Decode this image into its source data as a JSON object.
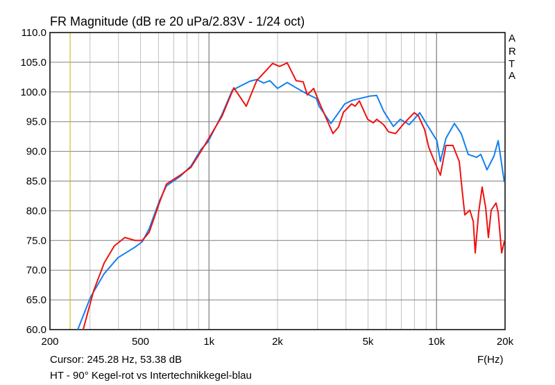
{
  "chart_data": {
    "type": "line",
    "title": "FR Magnitude (dB re 20 uPa/2.83V - 1/24 oct)",
    "xlabel": "F(Hz)",
    "ylabel": "",
    "xscale": "log",
    "xlim": [
      200,
      20000
    ],
    "ylim": [
      60,
      110
    ],
    "grid": true,
    "x_ticks": [
      {
        "v": 200,
        "label": "200"
      },
      {
        "v": 500,
        "label": "500"
      },
      {
        "v": 1000,
        "label": "1k"
      },
      {
        "v": 2000,
        "label": "2k"
      },
      {
        "v": 5000,
        "label": "5k"
      },
      {
        "v": 10000,
        "label": "10k"
      },
      {
        "v": 20000,
        "label": "20k"
      }
    ],
    "y_ticks": [
      "60.0",
      "65.0",
      "70.0",
      "75.0",
      "80.0",
      "85.0",
      "90.0",
      "95.0",
      "100.0",
      "105.0",
      "110.0"
    ],
    "cursor_hz": 245.28,
    "series": [
      {
        "color": "#1080f0",
        "points": [
          [
            265,
            60
          ],
          [
            301,
            65.4
          ],
          [
            346,
            69.4
          ],
          [
            398,
            72.1
          ],
          [
            474,
            73.9
          ],
          [
            509,
            74.8
          ],
          [
            546,
            77
          ],
          [
            606,
            81.7
          ],
          [
            650,
            84.2
          ],
          [
            748,
            85.8
          ],
          [
            832,
            87.5
          ],
          [
            925,
            90.4
          ],
          [
            990,
            91.6
          ],
          [
            1140,
            96.2
          ],
          [
            1266,
            100.3
          ],
          [
            1510,
            101.8
          ],
          [
            1620,
            102.1
          ],
          [
            1738,
            101.5
          ],
          [
            1852,
            101.9
          ],
          [
            2000,
            100.6
          ],
          [
            2206,
            101.6
          ],
          [
            2416,
            100.7
          ],
          [
            2686,
            99.7
          ],
          [
            2964,
            98.9
          ],
          [
            3048,
            97.6
          ],
          [
            3434,
            94.7
          ],
          [
            3952,
            98
          ],
          [
            4268,
            98.6
          ],
          [
            5086,
            99.3
          ],
          [
            5458,
            99.4
          ],
          [
            5850,
            96.8
          ],
          [
            6460,
            94.2
          ],
          [
            6930,
            95.4
          ],
          [
            7590,
            94.5
          ],
          [
            8434,
            96.5
          ],
          [
            9180,
            94.2
          ],
          [
            10040,
            91.8
          ],
          [
            10400,
            88.3
          ],
          [
            11000,
            92.2
          ],
          [
            11980,
            94.7
          ],
          [
            12840,
            93
          ],
          [
            13780,
            89.5
          ],
          [
            15000,
            89
          ],
          [
            15640,
            89.5
          ],
          [
            16660,
            86.9
          ],
          [
            17870,
            89.2
          ],
          [
            18660,
            91.8
          ],
          [
            19860,
            84.8
          ]
        ]
      },
      {
        "color": "#f01010",
        "points": [
          [
            280,
            60
          ],
          [
            311,
            66.5
          ],
          [
            346,
            71.2
          ],
          [
            384,
            74.1
          ],
          [
            427,
            75.5
          ],
          [
            474,
            75
          ],
          [
            509,
            75
          ],
          [
            546,
            76.4
          ],
          [
            606,
            81.4
          ],
          [
            650,
            84.5
          ],
          [
            748,
            86
          ],
          [
            832,
            87.3
          ],
          [
            925,
            90.1
          ],
          [
            1140,
            95.9
          ],
          [
            1266,
            100.1
          ],
          [
            1286,
            100.7
          ],
          [
            1458,
            97.6
          ],
          [
            1620,
            101.9
          ],
          [
            1904,
            104.8
          ],
          [
            2042,
            104.3
          ],
          [
            2206,
            104.9
          ],
          [
            2416,
            101.9
          ],
          [
            2594,
            101.7
          ],
          [
            2704,
            99.5
          ],
          [
            2884,
            100.6
          ],
          [
            3048,
            98.3
          ],
          [
            3340,
            94.8
          ],
          [
            3508,
            93
          ],
          [
            3710,
            94.1
          ],
          [
            3900,
            96.6
          ],
          [
            4236,
            98
          ],
          [
            4386,
            97.6
          ],
          [
            4580,
            98.5
          ],
          [
            4980,
            95.4
          ],
          [
            5272,
            94.8
          ],
          [
            5458,
            95.4
          ],
          [
            5850,
            94.5
          ],
          [
            6150,
            93.3
          ],
          [
            6600,
            93
          ],
          [
            7226,
            94.8
          ],
          [
            7980,
            96.5
          ],
          [
            8318,
            96
          ],
          [
            8860,
            93.7
          ],
          [
            9240,
            90.7
          ],
          [
            9844,
            88.1
          ],
          [
            10400,
            86
          ],
          [
            11000,
            91
          ],
          [
            11800,
            91
          ],
          [
            12580,
            88.3
          ],
          [
            13030,
            82.5
          ],
          [
            13310,
            79.3
          ],
          [
            14000,
            80.1
          ],
          [
            14500,
            78.2
          ],
          [
            14790,
            72.9
          ],
          [
            15310,
            79.7
          ],
          [
            15860,
            84
          ],
          [
            16440,
            80.5
          ],
          [
            16900,
            75.5
          ],
          [
            17380,
            80.1
          ],
          [
            18260,
            81.3
          ],
          [
            18660,
            79.7
          ],
          [
            19320,
            72.9
          ],
          [
            19860,
            74.9
          ]
        ]
      }
    ]
  },
  "side_label": [
    "A",
    "R",
    "T",
    "A"
  ],
  "cursor_text": "Cursor: 245.28 Hz, 53.38 dB",
  "legend_text": "HT - 90° Kegel-rot vs Intertechnikkegel-blau"
}
